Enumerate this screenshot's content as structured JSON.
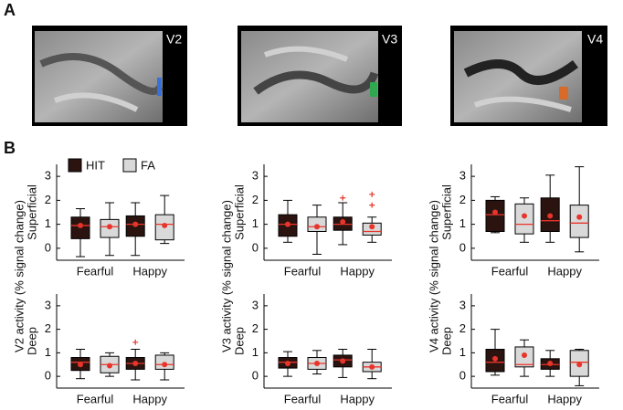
{
  "panel_a": {
    "label": "A",
    "images": [
      "V2",
      "V3",
      "V4"
    ]
  },
  "panel_b_label": "B",
  "legend": [
    {
      "name": "HIT",
      "color": "#2b1310"
    },
    {
      "name": "FA",
      "color": "#d9d9d9"
    }
  ],
  "median_color": "#e8342a",
  "chart_data": [
    {
      "type": "box",
      "ylabel": "V2 activity (% signal change)",
      "row_label": "Superficial",
      "categories": [
        "Fearful",
        "Happy"
      ],
      "ylim": [
        -0.5,
        3.5
      ],
      "yticks": [
        0,
        1,
        2,
        3
      ],
      "series": [
        {
          "boxes": [
            {
              "whislo": -0.35,
              "q1": 0.4,
              "med": 0.95,
              "q3": 1.3,
              "whishi": 1.65,
              "mean": 0.95,
              "fliers": []
            },
            {
              "whislo": -0.3,
              "q1": 0.5,
              "med": 1.0,
              "q3": 1.35,
              "whishi": 1.9,
              "mean": 1.0,
              "fliers": []
            }
          ]
        },
        {
          "boxes": [
            {
              "whislo": -0.3,
              "q1": 0.45,
              "med": 0.9,
              "q3": 1.2,
              "whishi": 1.9,
              "mean": 0.9,
              "fliers": []
            },
            {
              "whislo": 0.2,
              "q1": 0.35,
              "med": 1.0,
              "q3": 1.4,
              "whishi": 2.2,
              "mean": 0.95,
              "fliers": []
            }
          ]
        }
      ]
    },
    {
      "type": "box",
      "ylabel": "V3 activity (% signal change)",
      "row_label": "Superficial",
      "categories": [
        "Fearful",
        "Happy"
      ],
      "ylim": [
        -0.5,
        3.5
      ],
      "yticks": [
        0,
        1,
        2,
        3
      ],
      "series": [
        {
          "boxes": [
            {
              "whislo": 0.25,
              "q1": 0.5,
              "med": 1.0,
              "q3": 1.4,
              "whishi": 2.0,
              "mean": 1.0,
              "fliers": []
            },
            {
              "whislo": 0.15,
              "q1": 0.75,
              "med": 1.0,
              "q3": 1.3,
              "whishi": 1.9,
              "mean": 1.1,
              "fliers": [
                2.1
              ]
            }
          ]
        },
        {
          "boxes": [
            {
              "whislo": -0.25,
              "q1": 0.7,
              "med": 0.9,
              "q3": 1.3,
              "whishi": 1.8,
              "mean": 0.9,
              "fliers": []
            },
            {
              "whislo": 0.25,
              "q1": 0.55,
              "med": 0.7,
              "q3": 1.05,
              "whishi": 1.3,
              "mean": 0.9,
              "fliers": [
                1.8,
                2.25
              ]
            }
          ]
        }
      ]
    },
    {
      "type": "box",
      "ylabel": "V4 activity (% signal change)",
      "row_label": "Superficial",
      "categories": [
        "Fearful",
        "Happy"
      ],
      "ylim": [
        -0.5,
        3.5
      ],
      "yticks": [
        0,
        1,
        2,
        3
      ],
      "series": [
        {
          "boxes": [
            {
              "whislo": 0.65,
              "q1": 0.7,
              "med": 1.4,
              "q3": 2.0,
              "whishi": 2.15,
              "mean": 1.5,
              "fliers": []
            },
            {
              "whislo": 0.25,
              "q1": 0.7,
              "med": 1.15,
              "q3": 2.1,
              "whishi": 3.05,
              "mean": 1.35,
              "fliers": []
            }
          ]
        },
        {
          "boxes": [
            {
              "whislo": 0.25,
              "q1": 0.6,
              "med": 1.0,
              "q3": 1.85,
              "whishi": 2.1,
              "mean": 1.35,
              "fliers": []
            },
            {
              "whislo": -0.15,
              "q1": 0.45,
              "med": 1.05,
              "q3": 1.8,
              "whishi": 3.4,
              "mean": 1.3,
              "fliers": []
            }
          ]
        }
      ]
    },
    {
      "type": "box",
      "row_label": "Deep",
      "categories": [
        "Fearful",
        "Happy"
      ],
      "ylim": [
        -0.5,
        3.5
      ],
      "yticks": [
        0,
        1,
        2,
        3
      ],
      "series": [
        {
          "boxes": [
            {
              "whislo": -0.1,
              "q1": 0.25,
              "med": 0.6,
              "q3": 0.8,
              "whishi": 1.15,
              "mean": 0.5,
              "fliers": []
            },
            {
              "whislo": -0.15,
              "q1": 0.3,
              "med": 0.55,
              "q3": 0.8,
              "whishi": 1.15,
              "mean": 0.55,
              "fliers": [
                1.45
              ]
            }
          ]
        },
        {
          "boxes": [
            {
              "whislo": 0.0,
              "q1": 0.15,
              "med": 0.5,
              "q3": 0.85,
              "whishi": 1.0,
              "mean": 0.45,
              "fliers": []
            },
            {
              "whislo": -0.15,
              "q1": 0.3,
              "med": 0.5,
              "q3": 0.9,
              "whishi": 1.0,
              "mean": 0.5,
              "fliers": []
            }
          ]
        }
      ]
    },
    {
      "type": "box",
      "row_label": "Deep",
      "categories": [
        "Fearful",
        "Happy"
      ],
      "ylim": [
        -0.5,
        3.5
      ],
      "yticks": [
        0,
        1,
        2,
        3
      ],
      "series": [
        {
          "boxes": [
            {
              "whislo": 0.0,
              "q1": 0.35,
              "med": 0.6,
              "q3": 0.8,
              "whishi": 1.05,
              "mean": 0.55,
              "fliers": []
            },
            {
              "whislo": -0.05,
              "q1": 0.4,
              "med": 0.7,
              "q3": 0.9,
              "whishi": 1.15,
              "mean": 0.65,
              "fliers": []
            }
          ]
        },
        {
          "boxes": [
            {
              "whislo": 0.1,
              "q1": 0.3,
              "med": 0.55,
              "q3": 0.8,
              "whishi": 1.1,
              "mean": 0.55,
              "fliers": []
            },
            {
              "whislo": -0.1,
              "q1": 0.2,
              "med": 0.4,
              "q3": 0.6,
              "whishi": 1.15,
              "mean": 0.4,
              "fliers": []
            }
          ]
        }
      ]
    },
    {
      "type": "box",
      "row_label": "Deep",
      "categories": [
        "Fearful",
        "Happy"
      ],
      "ylim": [
        -0.5,
        3.5
      ],
      "yticks": [
        0,
        1,
        2,
        3
      ],
      "series": [
        {
          "boxes": [
            {
              "whislo": 0.05,
              "q1": 0.2,
              "med": 0.6,
              "q3": 1.15,
              "whishi": 2.0,
              "mean": 0.75,
              "fliers": []
            },
            {
              "whislo": 0.0,
              "q1": 0.3,
              "med": 0.5,
              "q3": 0.75,
              "whishi": 1.1,
              "mean": 0.55,
              "fliers": []
            }
          ]
        },
        {
          "boxes": [
            {
              "whislo": 0.0,
              "q1": 0.4,
              "med": 0.5,
              "q3": 1.25,
              "whishi": 1.55,
              "mean": 0.9,
              "fliers": []
            },
            {
              "whislo": -0.4,
              "q1": 0.0,
              "med": 0.6,
              "q3": 1.1,
              "whishi": 1.15,
              "mean": 0.5,
              "fliers": []
            }
          ]
        }
      ]
    }
  ]
}
